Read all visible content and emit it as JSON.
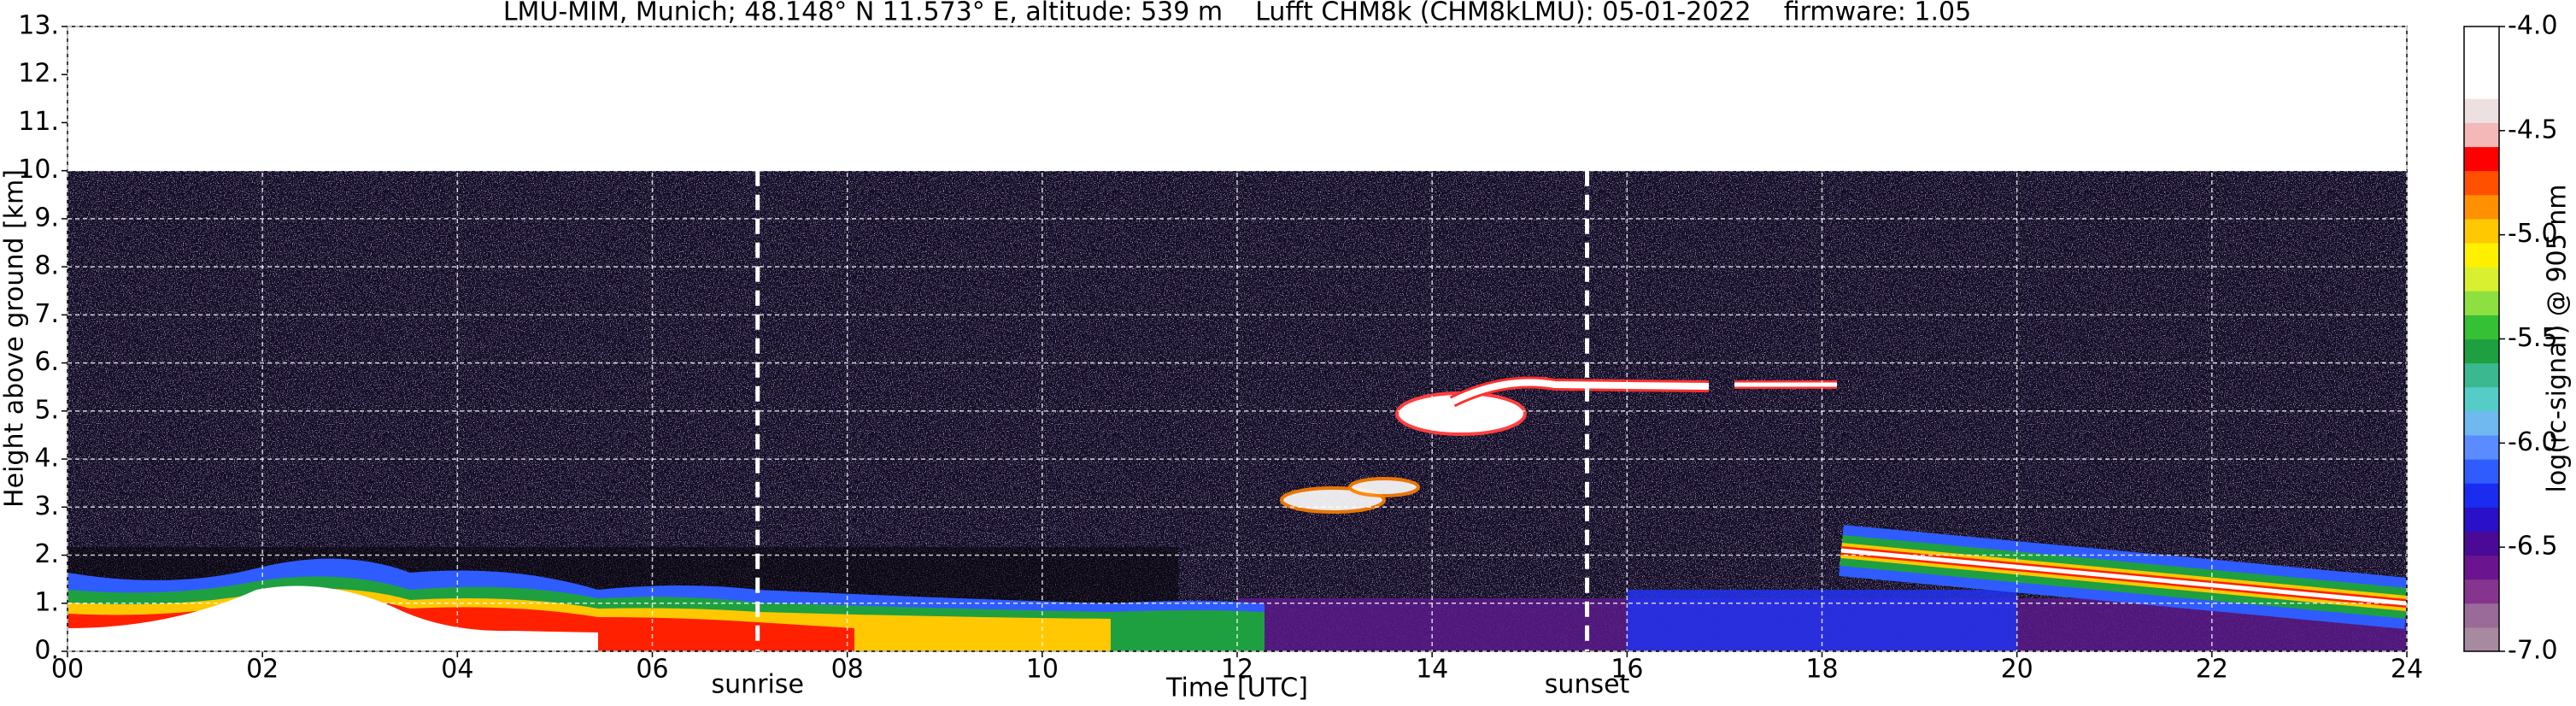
{
  "chart_data": {
    "type": "heatmap",
    "title": "LMU-MIM, Munich; 48.148° N 11.573° E, altitude: 539 m    Lufft CHM8k (CHM8kLMU): 05-01-2022    firmware: 1.05",
    "xlabel": "Time [UTC]",
    "ylabel": "Height above ground [km]",
    "xlim": [
      0,
      24
    ],
    "xticks": [
      {
        "value": 0,
        "label": "00"
      },
      {
        "value": 2,
        "label": "02"
      },
      {
        "value": 4,
        "label": "04"
      },
      {
        "value": 6,
        "label": "06"
      },
      {
        "value": 8,
        "label": "08"
      },
      10,
      12,
      14,
      16,
      18,
      20,
      22,
      24
    ],
    "ylim": [
      0,
      13
    ],
    "yticks": [
      {
        "value": 0,
        "label": "0."
      },
      {
        "value": 1,
        "label": "1."
      },
      {
        "value": 2,
        "label": "2."
      },
      {
        "value": 3,
        "label": "3."
      },
      {
        "value": 4,
        "label": "4."
      },
      {
        "value": 5,
        "label": "5."
      },
      {
        "value": 6,
        "label": "6."
      },
      {
        "value": 7,
        "label": "7."
      },
      {
        "value": 8,
        "label": "8."
      },
      {
        "value": 9,
        "label": "9."
      },
      {
        "value": 10,
        "label": "10."
      },
      {
        "value": 11,
        "label": "11."
      },
      {
        "value": 12,
        "label": "12."
      },
      {
        "value": 13,
        "label": "13."
      }
    ],
    "grid": true,
    "annotations": [
      {
        "text": "sunrise",
        "x": 7.08
      },
      {
        "text": "sunset",
        "x": 15.59
      }
    ],
    "colorbar": {
      "label": "log(rc-signal) @ 905 nm",
      "clim": [
        -7,
        -4
      ],
      "ticks": [
        {
          "value": -4,
          "label": "-4.0"
        },
        {
          "value": -4.5,
          "label": "-4.5"
        },
        {
          "value": -5,
          "label": "-5.0"
        },
        {
          "value": -5.5,
          "label": "-5.5"
        },
        {
          "value": -6,
          "label": "-6.0"
        },
        {
          "value": -6.5,
          "label": "-6.5"
        },
        {
          "value": -7,
          "label": "-7.0"
        }
      ],
      "colors": [
        "#a88aa0",
        "#9a6a98",
        "#86358f",
        "#6a1490",
        "#4a0a96",
        "#2a10c8",
        "#1a2cf0",
        "#2f5cff",
        "#5a8cff",
        "#6fb8f0",
        "#55ccc8",
        "#3bb890",
        "#1ea040",
        "#35c035",
        "#8ee040",
        "#d8f030",
        "#fff000",
        "#ffc800",
        "#ff9000",
        "#ff5000",
        "#ff0000",
        "#f4b8b8",
        "#ece0e0",
        "#ffffff",
        "#ffffff",
        "#ffffff"
      ]
    }
  }
}
